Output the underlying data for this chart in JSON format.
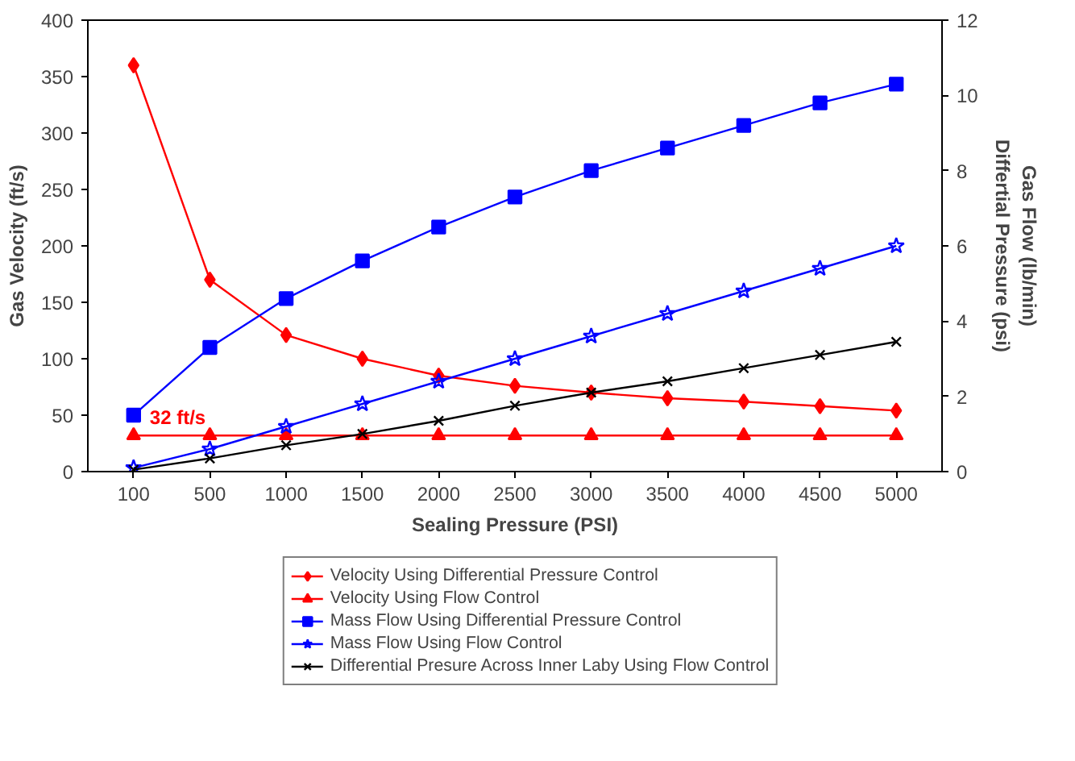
{
  "chart_data": {
    "type": "line",
    "xlabel": "Sealing Pressure (PSI)",
    "ylabel": "Gas Velocity (ft/s)",
    "y2label": "Gas Flow (lb/min)\nDiffertial Pressure (psi)",
    "categories": [
      "100",
      "500",
      "1000",
      "1500",
      "2000",
      "2500",
      "3000",
      "3500",
      "4000",
      "4500",
      "5000"
    ],
    "ylim": [
      0,
      400
    ],
    "yticks": [
      0,
      50,
      100,
      150,
      200,
      250,
      300,
      350,
      400
    ],
    "y2lim": [
      0,
      12
    ],
    "y2ticks": [
      0,
      2,
      4,
      6,
      8,
      10,
      12
    ],
    "grid": false,
    "legend": "bottom",
    "line_style": "solid",
    "annotations": [
      {
        "text": "32 ft/s",
        "x": "100",
        "y": 32
      }
    ],
    "series": [
      {
        "name": "Velocity Using Differential Pressure Control",
        "color": "#ff0000",
        "marker": "diamond",
        "values": [
          360,
          170,
          121,
          100,
          85,
          76,
          70,
          65,
          62,
          58,
          54
        ]
      },
      {
        "name": "Velocity Using Flow Control",
        "color": "#ff0000",
        "marker": "triangle",
        "values": [
          32,
          32,
          32,
          32,
          32,
          32,
          32,
          32,
          32,
          32,
          32
        ]
      },
      {
        "name": "Mass Flow Using Differential Pressure Control",
        "color": "#0000ff",
        "marker": "square",
        "axis": "y2",
        "values": [
          1.5,
          3.3,
          4.6,
          5.6,
          6.5,
          7.3,
          8.0,
          8.6,
          9.2,
          9.8,
          10.3
        ]
      },
      {
        "name": "Mass Flow Using Flow Control",
        "color": "#0000ff",
        "marker": "star",
        "axis": "y2",
        "values": [
          0.1,
          0.6,
          1.2,
          1.8,
          2.4,
          3.0,
          3.6,
          4.2,
          4.8,
          5.4,
          6.0
        ]
      },
      {
        "name": "Differential Presure Across Inner Laby Using Flow Control",
        "color": "#000000",
        "marker": "cross",
        "axis": "y2",
        "values": [
          0.05,
          0.35,
          0.7,
          1.0,
          1.35,
          1.75,
          2.1,
          2.4,
          2.75,
          3.1,
          3.45
        ]
      }
    ]
  }
}
